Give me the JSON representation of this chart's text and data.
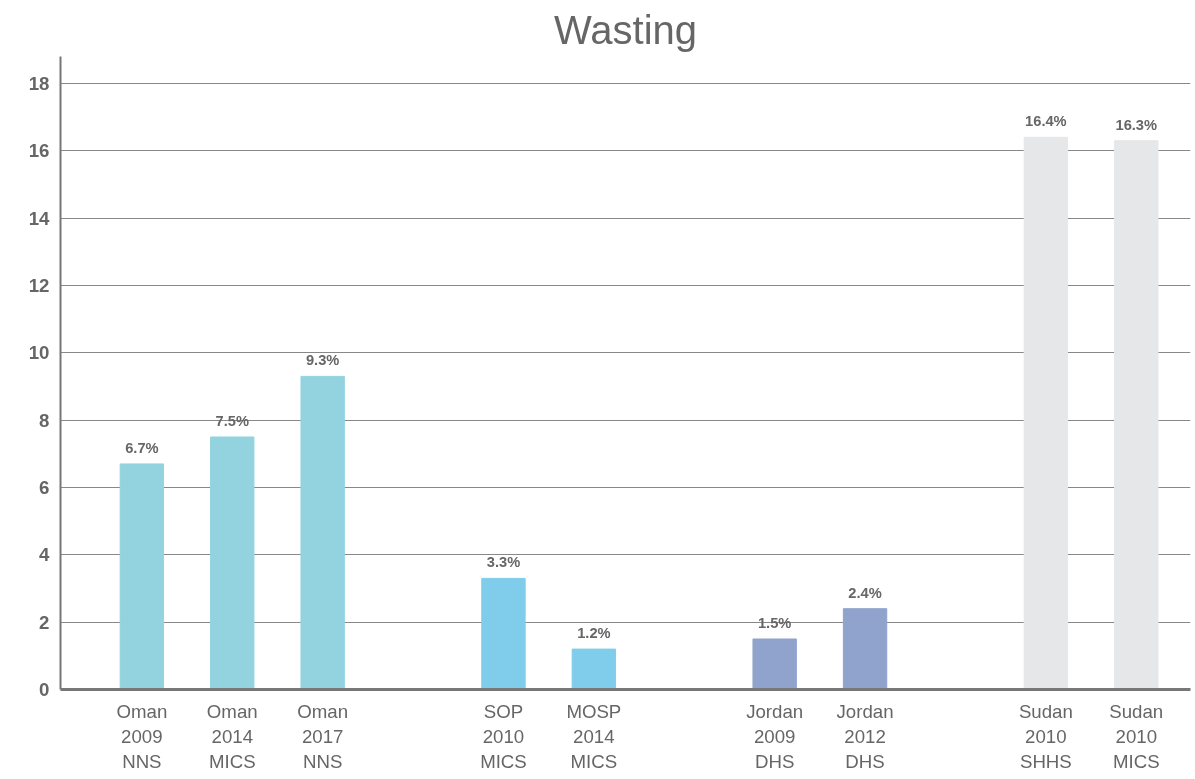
{
  "chart_data": {
    "type": "bar",
    "title": "Wasting",
    "categories": [
      "Oman\n2009\nNNS",
      "Oman\n2014\nMICS",
      "Oman\n2017\nNNS",
      null,
      "SOP\n2010\nMICS",
      "MOSP\n2014\nMICS",
      null,
      "Jordan\n2009\nDHS",
      "Jordan\n2012\nDHS",
      null,
      "Sudan\n2010\nSHHS",
      "Sudan\n2010\nMICS"
    ],
    "values": [
      6.7,
      7.5,
      9.3,
      null,
      3.3,
      1.2,
      null,
      1.5,
      2.4,
      null,
      16.4,
      16.3
    ],
    "colors": [
      "#93d3e0",
      "#93d3e0",
      "#93d3e0",
      null,
      "#7fcdea",
      "#7fcdea",
      null,
      "#8fa3cc",
      "#8fa3cc",
      null,
      "#e6e7e8",
      "#e6e7e8"
    ],
    "value_labels": [
      "6.7%",
      "7.5%",
      "9.3%",
      null,
      "3.3%",
      "1.2%",
      null,
      "1.5%",
      "2.4%",
      null,
      "16.4%",
      "16.3%"
    ],
    "ylim": [
      0,
      18.8
    ],
    "yticks": [
      0,
      2,
      4,
      6,
      8,
      10,
      12,
      14,
      16,
      18
    ],
    "grid": "y"
  }
}
